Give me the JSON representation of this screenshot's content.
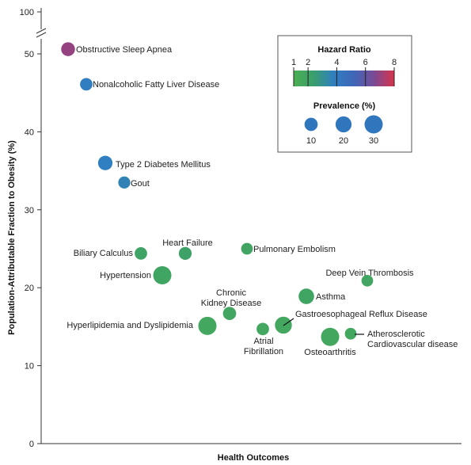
{
  "chart_data": {
    "type": "scatter",
    "xlabel": "Health Outcomes",
    "ylabel": "Population-Attributable Fraction to Obesity (%)",
    "yticks": [
      0,
      10,
      20,
      30,
      40,
      50,
      100
    ],
    "ylim": [
      0,
      100
    ],
    "y_axis_break": "between 50 and 100",
    "grid": false,
    "points": [
      {
        "label": "Obstructive Sleep Apnea",
        "y": 50.6,
        "hazard_ratio": 7.0,
        "prevalence": 12
      },
      {
        "label": "Nonalcoholic Fatty Liver Disease",
        "y": 46.1,
        "hazard_ratio": 3.9,
        "prevalence": 8
      },
      {
        "label": "Type 2 Diabetes Mellitus",
        "y": 36.0,
        "hazard_ratio": 3.8,
        "prevalence": 14
      },
      {
        "label": "Gout",
        "y": 33.5,
        "hazard_ratio": 3.6,
        "prevalence": 7
      },
      {
        "label": "Biliary Calculus",
        "y": 24.4,
        "hazard_ratio": 2.0,
        "prevalence": 8
      },
      {
        "label": "Heart Failure",
        "y": 24.4,
        "hazard_ratio": 2.1,
        "prevalence": 9
      },
      {
        "label": "Pulmonary Embolism",
        "y": 25.0,
        "hazard_ratio": 1.9,
        "prevalence": 6
      },
      {
        "label": "Hypertension",
        "y": 21.6,
        "hazard_ratio": 1.9,
        "prevalence": 30
      },
      {
        "label": "Deep Vein Thrombosis",
        "y": 20.9,
        "hazard_ratio": 1.8,
        "prevalence": 6
      },
      {
        "label": "Asthma",
        "y": 18.9,
        "hazard_ratio": 1.9,
        "prevalence": 18
      },
      {
        "label": "Chronic Kidney Disease",
        "y": 16.7,
        "hazard_ratio": 1.8,
        "prevalence": 10
      },
      {
        "label": "Gastroesophageal Reflux Disease",
        "y": 15.2,
        "hazard_ratio": 1.7,
        "prevalence": 24
      },
      {
        "label": "Atrial Fibrillation",
        "y": 14.7,
        "hazard_ratio": 1.7,
        "prevalence": 8
      },
      {
        "label": "Hyperlipidemia and Dyslipidemia",
        "y": 15.1,
        "hazard_ratio": 1.7,
        "prevalence": 30
      },
      {
        "label": "Osteoarthritis",
        "y": 13.7,
        "hazard_ratio": 1.7,
        "prevalence": 30
      },
      {
        "label": "Atherosclerotic Cardiovascular disease",
        "y": 14.1,
        "hazard_ratio": 1.7,
        "prevalence": 6
      }
    ],
    "legend": {
      "placement": "top-right",
      "hazard_title": "Hazard Ratio",
      "hazard_ticks": [
        1,
        2,
        4,
        6,
        8
      ],
      "hazard_colors": [
        "#4caf50",
        "#3a9e6e",
        "#2f7fc1",
        "#3f66b8",
        "#7a4a95",
        "#d8334a"
      ],
      "prevalence_title": "Prevalence (%)",
      "prevalence_values": [
        10,
        20,
        30
      ]
    }
  }
}
